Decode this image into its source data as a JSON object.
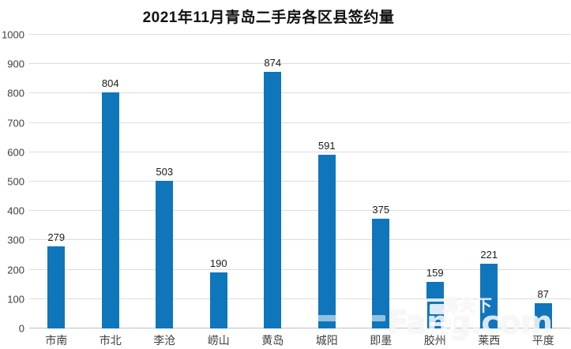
{
  "chart_data": {
    "type": "bar",
    "title": "2021年11月青岛二手房各区县签约量",
    "categories": [
      "市南",
      "市北",
      "李沧",
      "崂山",
      "黄岛",
      "城阳",
      "即墨",
      "胶州",
      "莱西",
      "平度"
    ],
    "values": [
      279,
      804,
      503,
      190,
      874,
      591,
      375,
      159,
      221,
      87
    ],
    "xlabel": "",
    "ylabel": "",
    "ylim": [
      0,
      1000
    ],
    "yticks": [
      0,
      100,
      200,
      300,
      400,
      500,
      600,
      700,
      800,
      900,
      1000
    ],
    "grid": true,
    "legend": "none",
    "data_labels": true
  },
  "watermark": {
    "cjk": "房天下",
    "latin": "Fang.com"
  },
  "colors": {
    "bar": "#0F76BC",
    "gridline": "#DCDCDC",
    "axis_line": "#C2C2C2",
    "value_text": "#1A1A1A",
    "axis_text": "#3F3F3F",
    "background": "#FFFFFF"
  }
}
